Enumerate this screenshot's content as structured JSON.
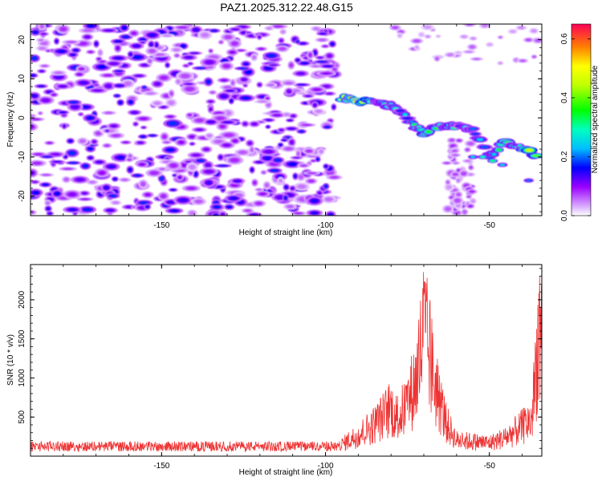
{
  "title": "PAZ1.2025.312.22.48.G15",
  "chart_data": [
    {
      "type": "heatmap",
      "xlabel": "Height of straight line (km)",
      "ylabel": "Frequency (Hz)",
      "xlim": [
        -190,
        -34
      ],
      "ylim": [
        -25,
        24
      ],
      "x_ticks": [
        -150,
        -100,
        -50
      ],
      "x_tick_labels": [
        "-150",
        "-100",
        "-50"
      ],
      "y_ticks": [
        -20,
        -10,
        0,
        10,
        20
      ],
      "y_tick_labels": [
        "-20",
        "-10",
        "0",
        "10",
        "20"
      ],
      "colorbar": {
        "label": "Normalized spectral amplitude",
        "range": [
          0.0,
          0.65
        ],
        "ticks": [
          0.0,
          0.2,
          0.4,
          0.6
        ],
        "tick_labels": [
          "0.0",
          "0.2",
          "0.4",
          "0.6"
        ]
      },
      "noise_region": {
        "x_range": [
          -190,
          -97
        ],
        "y_range": [
          -25,
          24
        ],
        "typical_amplitude": 0.12
      },
      "signal_track": {
        "points": [
          {
            "x": -95,
            "y": 5,
            "amplitude": 0.45
          },
          {
            "x": -90,
            "y": 4.5,
            "amplitude": 0.6
          },
          {
            "x": -85,
            "y": 4,
            "amplitude": 0.35
          },
          {
            "x": -80,
            "y": 3,
            "amplitude": 0.3
          },
          {
            "x": -75,
            "y": 0,
            "amplitude": 0.25
          },
          {
            "x": -70,
            "y": -4,
            "amplitude": 0.45
          },
          {
            "x": -65,
            "y": -2,
            "amplitude": 0.3
          },
          {
            "x": -60,
            "y": -2,
            "amplitude": 0.3
          },
          {
            "x": -55,
            "y": -3,
            "amplitude": 0.25
          },
          {
            "x": -50,
            "y": -10,
            "amplitude": 0.3
          },
          {
            "x": -45,
            "y": -6,
            "amplitude": 0.35
          },
          {
            "x": -40,
            "y": -8,
            "amplitude": 0.45
          },
          {
            "x": -35,
            "y": -10,
            "amplitude": 0.4
          }
        ]
      }
    },
    {
      "type": "line",
      "xlabel": "Height of straight line (km)",
      "ylabel": "SNR (10 * v/v)",
      "xlim": [
        -190,
        -34
      ],
      "ylim": [
        0,
        2450
      ],
      "x_ticks": [
        -150,
        -100,
        -50
      ],
      "x_tick_labels": [
        "-150",
        "-100",
        "-50"
      ],
      "y_ticks": [
        500,
        1000,
        1500,
        2000
      ],
      "y_tick_labels": [
        "500",
        "1000",
        "1500",
        "2000"
      ],
      "line_color": "#ee3333",
      "series": [
        {
          "name": "SNR",
          "envelope": [
            {
              "x": -190,
              "y": 140
            },
            {
              "x": -150,
              "y": 150
            },
            {
              "x": -120,
              "y": 160
            },
            {
              "x": -100,
              "y": 170
            },
            {
              "x": -95,
              "y": 220
            },
            {
              "x": -90,
              "y": 400
            },
            {
              "x": -85,
              "y": 600
            },
            {
              "x": -80,
              "y": 900
            },
            {
              "x": -78,
              "y": 700
            },
            {
              "x": -75,
              "y": 1000
            },
            {
              "x": -72,
              "y": 1500
            },
            {
              "x": -70,
              "y": 2400
            },
            {
              "x": -68,
              "y": 1800
            },
            {
              "x": -66,
              "y": 1200
            },
            {
              "x": -63,
              "y": 600
            },
            {
              "x": -60,
              "y": 300
            },
            {
              "x": -50,
              "y": 250
            },
            {
              "x": -45,
              "y": 350
            },
            {
              "x": -40,
              "y": 550
            },
            {
              "x": -37,
              "y": 700
            },
            {
              "x": -36,
              "y": 1500
            },
            {
              "x": -35,
              "y": 2300
            },
            {
              "x": -34,
              "y": 2000
            }
          ]
        }
      ]
    }
  ]
}
